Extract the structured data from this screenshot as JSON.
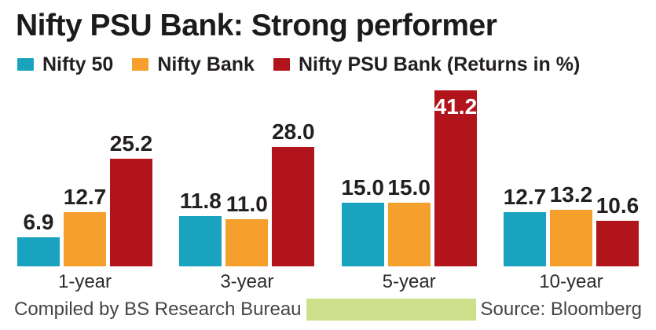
{
  "title": "Nifty PSU Bank: Strong performer",
  "legend": {
    "items": [
      {
        "label": "Nifty 50",
        "color": "#1aa3be"
      },
      {
        "label": "Nifty Bank",
        "color": "#f5a02c"
      },
      {
        "label": "Nifty PSU Bank (Returns in %)",
        "color": "#b2141c"
      }
    ]
  },
  "chart_data": {
    "type": "bar",
    "title": "Nifty PSU Bank: Strong performer",
    "categories": [
      "1-year",
      "3-year",
      "5-year",
      "10-year"
    ],
    "series": [
      {
        "name": "Nifty 50",
        "color": "#1aa3be",
        "values": [
          6.9,
          11.8,
          15.0,
          12.7
        ]
      },
      {
        "name": "Nifty Bank",
        "color": "#f5a02c",
        "values": [
          12.7,
          11.0,
          15.0,
          13.2
        ]
      },
      {
        "name": "Nifty PSU Bank",
        "color": "#b2141c",
        "values": [
          25.2,
          28.0,
          41.2,
          10.6
        ],
        "label_inside": [
          false,
          false,
          true,
          false
        ]
      }
    ],
    "value_labels": true,
    "value_decimals": 1,
    "xlabel": "",
    "ylabel": "Returns in %",
    "ylim": [
      0,
      42
    ],
    "grid": false,
    "legend_position": "top"
  },
  "footer": {
    "left_text": "Compiled by BS Research Bureau",
    "right_text": "Source: Bloomberg",
    "highlight_color": "#cfe08c"
  }
}
